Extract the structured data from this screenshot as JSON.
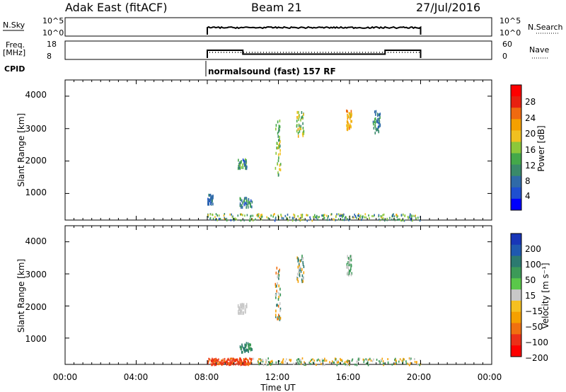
{
  "header": {
    "station": "Adak East (fitACF)",
    "beam": "Beam 21",
    "date": "27/Jul/2016"
  },
  "top_panels": {
    "nsky_label": "N.Sky",
    "nsky_ticks": [
      "10^5",
      "10^0"
    ],
    "nsearch_label": "N.Search",
    "nsearch_ticks": [
      "10^5",
      "10^0"
    ],
    "freq_label": "Freq.",
    "freq_unit": "[MHz]",
    "freq_ticks": [
      "18",
      "8"
    ],
    "nave_label": "Nave",
    "nave_ticks": [
      "60",
      "0"
    ],
    "cpid_label": "CPID",
    "cpid_text": "normalsound (fast) 157 RF"
  },
  "x_axis": {
    "label": "Time UT",
    "ticks": [
      "00:00",
      "04:00",
      "08:00",
      "12:00",
      "16:00",
      "20:00",
      "00:00"
    ]
  },
  "panels": [
    {
      "ylabel": "Slant Range [km]",
      "yticks": [
        "4000",
        "3000",
        "2000",
        "1000"
      ]
    },
    {
      "ylabel": "Slant Range [km]",
      "yticks": [
        "4000",
        "3000",
        "2000",
        "1000"
      ]
    }
  ],
  "colorbars": {
    "power": {
      "label": "Power [dB]",
      "ticks": [
        "28",
        "24",
        "20",
        "16",
        "12",
        "8",
        "4"
      ],
      "colors": [
        "#0000ff",
        "#1e4fd0",
        "#2f6aa8",
        "#3a8a6a",
        "#44a84a",
        "#8cc83a",
        "#f0c020",
        "#f5a000",
        "#f06a10",
        "#e82010",
        "#ff0000"
      ]
    },
    "velocity": {
      "label": "Velocity [m s⁻¹]",
      "ticks": [
        "200",
        "100",
        "50",
        "15",
        "−15",
        "−50",
        "−100",
        "−200"
      ],
      "colors": [
        "#1836b8",
        "#1f59b0",
        "#2c7a70",
        "#3c9a58",
        "#5ac84a",
        "#c8c8c8",
        "#f5c020",
        "#f5a000",
        "#f07010",
        "#ec3018",
        "#ff0000"
      ]
    }
  },
  "chart_data": {
    "type": "heatmap",
    "time_range_hours": [
      0,
      24
    ],
    "range_km": [
      180,
      4500
    ],
    "operation_window_hours": [
      8,
      20
    ],
    "freq_mhz_segments": [
      {
        "t": [
          8,
          10
        ],
        "value": 13
      },
      {
        "t": [
          10,
          18
        ],
        "value": 10.5
      },
      {
        "t": [
          18,
          20
        ],
        "value": 13
      }
    ],
    "power_regions": [
      {
        "t": [
          8,
          20
        ],
        "range": [
          190,
          400
        ],
        "db_range": [
          4,
          20
        ],
        "note": "near-range band"
      },
      {
        "t": [
          8.0,
          8.3
        ],
        "range": [
          700,
          1000
        ],
        "db_range": [
          4,
          8
        ]
      },
      {
        "t": [
          9.7,
          10.2
        ],
        "range": [
          1800,
          2100
        ],
        "db_range": [
          4,
          16
        ]
      },
      {
        "t": [
          9.8,
          10.5
        ],
        "range": [
          600,
          900
        ],
        "db_range": [
          4,
          12
        ]
      },
      {
        "t": [
          11.8,
          12.1
        ],
        "range": [
          1600,
          3300
        ],
        "db_range": [
          8,
          20
        ]
      },
      {
        "t": [
          13.0,
          13.4
        ],
        "range": [
          2800,
          3600
        ],
        "db_range": [
          8,
          20
        ]
      },
      {
        "t": [
          15.8,
          16.1
        ],
        "range": [
          3000,
          3600
        ],
        "db_range": [
          16,
          24
        ]
      },
      {
        "t": [
          17.3,
          17.7
        ],
        "range": [
          2900,
          3600
        ],
        "db_range": [
          4,
          12
        ]
      }
    ],
    "velocity_regions": [
      {
        "t": [
          8,
          10.5
        ],
        "range": [
          190,
          400
        ],
        "vel_range": [
          -200,
          -50
        ]
      },
      {
        "t": [
          10.5,
          20
        ],
        "range": [
          190,
          400
        ],
        "vel_range": [
          -50,
          50
        ]
      },
      {
        "t": [
          9.7,
          10.2
        ],
        "range": [
          1800,
          2100
        ],
        "vel_range": [
          -15,
          15
        ]
      },
      {
        "t": [
          9.8,
          10.5
        ],
        "range": [
          600,
          900
        ],
        "vel_range": [
          15,
          100
        ]
      },
      {
        "t": [
          11.8,
          12.1
        ],
        "range": [
          1600,
          3300
        ],
        "vel_range": [
          -100,
          100
        ]
      },
      {
        "t": [
          13.0,
          13.4
        ],
        "range": [
          2800,
          3600
        ],
        "vel_range": [
          -50,
          100
        ]
      },
      {
        "t": [
          15.8,
          16.1
        ],
        "range": [
          3000,
          3600
        ],
        "vel_range": [
          -15,
          50
        ]
      }
    ]
  }
}
